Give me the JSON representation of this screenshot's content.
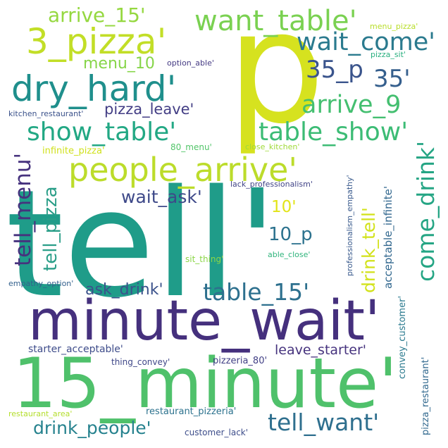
{
  "words": [
    {
      "text": "p",
      "color": "#d6e21f"
    },
    {
      "text": "tell'",
      "color": "#1f9c89"
    },
    {
      "text": "15_minute'",
      "color": "#4fc16b"
    },
    {
      "text": "minute_wait'",
      "color": "#45307d"
    },
    {
      "text": "3_pizza'",
      "color": "#c2de27"
    },
    {
      "text": "dry_hard'",
      "color": "#1f8f8c"
    },
    {
      "text": "people_arrive'",
      "color": "#bcdc2b"
    },
    {
      "text": "want_table'",
      "color": "#7ad151"
    },
    {
      "text": "wait_come'",
      "color": "#2a7a8e"
    },
    {
      "text": "arrive_15'",
      "color": "#95d840"
    },
    {
      "text": "show_table'",
      "color": "#22a884"
    },
    {
      "text": "table_show'",
      "color": "#3cbc75"
    },
    {
      "text": "arrive_9",
      "color": "#44bf70"
    },
    {
      "text": "35_p",
      "color": "#3a548c"
    },
    {
      "text": "35'",
      "color": "#355f8d"
    },
    {
      "text": "menu_10",
      "color": "#86d549"
    },
    {
      "text": "pizza_leave'",
      "color": "#433e85"
    },
    {
      "text": "wait_ask'",
      "color": "#3e4989"
    },
    {
      "text": "10'",
      "color": "#e2e418"
    },
    {
      "text": "10_p",
      "color": "#2c728e"
    },
    {
      "text": "table_15'",
      "color": "#2d708e"
    },
    {
      "text": "ask_drink'",
      "color": "#3b528b"
    },
    {
      "text": "drink_people'",
      "color": "#26828e"
    },
    {
      "text": "tell_want'",
      "color": "#2e6f8e"
    },
    {
      "text": "tell_menu'",
      "color": "#46327e"
    },
    {
      "text": "tell_pizza",
      "color": "#2a9e88"
    },
    {
      "text": "come_drink'",
      "color": "#25a584"
    },
    {
      "text": "drink_tell'",
      "color": "#d2e21b"
    },
    {
      "text": "acceptable_infinite'",
      "color": "#31678e"
    },
    {
      "text": "professionalism_empathy'",
      "color": "#38598c"
    },
    {
      "text": "leave_starter'",
      "color": "#46337e"
    },
    {
      "text": "starter_acceptable'",
      "color": "#3e4c8a"
    },
    {
      "text": "thing_convey'",
      "color": "#3f4788"
    },
    {
      "text": "pizzeria_80'",
      "color": "#424086"
    },
    {
      "text": "convey_customer'",
      "color": "#29798e"
    },
    {
      "text": "pizza_restaurant'",
      "color": "#31688e"
    },
    {
      "text": "restaurant_pizzeria'",
      "color": "#2c728e"
    },
    {
      "text": "customer_lack'",
      "color": "#3d4d8a"
    },
    {
      "text": "restaurant_area'",
      "color": "#b4de2c"
    },
    {
      "text": "kitchen_restaurant'",
      "color": "#3b528b"
    },
    {
      "text": "option_able'",
      "color": "#443a83"
    },
    {
      "text": "menu_pizza'",
      "color": "#b8de29"
    },
    {
      "text": "pizza_sit'",
      "color": "#29af7f"
    },
    {
      "text": "infinite_pizza'",
      "color": "#d0e11c"
    },
    {
      "text": "80_menu'",
      "color": "#52c569"
    },
    {
      "text": "close_kitchen'",
      "color": "#a0da39"
    },
    {
      "text": "lack_professionalism'",
      "color": "#414487"
    },
    {
      "text": "sit_thing'",
      "color": "#8bd646"
    },
    {
      "text": "able_close'",
      "color": "#2fb47c"
    },
    {
      "text": "empathy_option'",
      "color": "#34618d"
    }
  ]
}
